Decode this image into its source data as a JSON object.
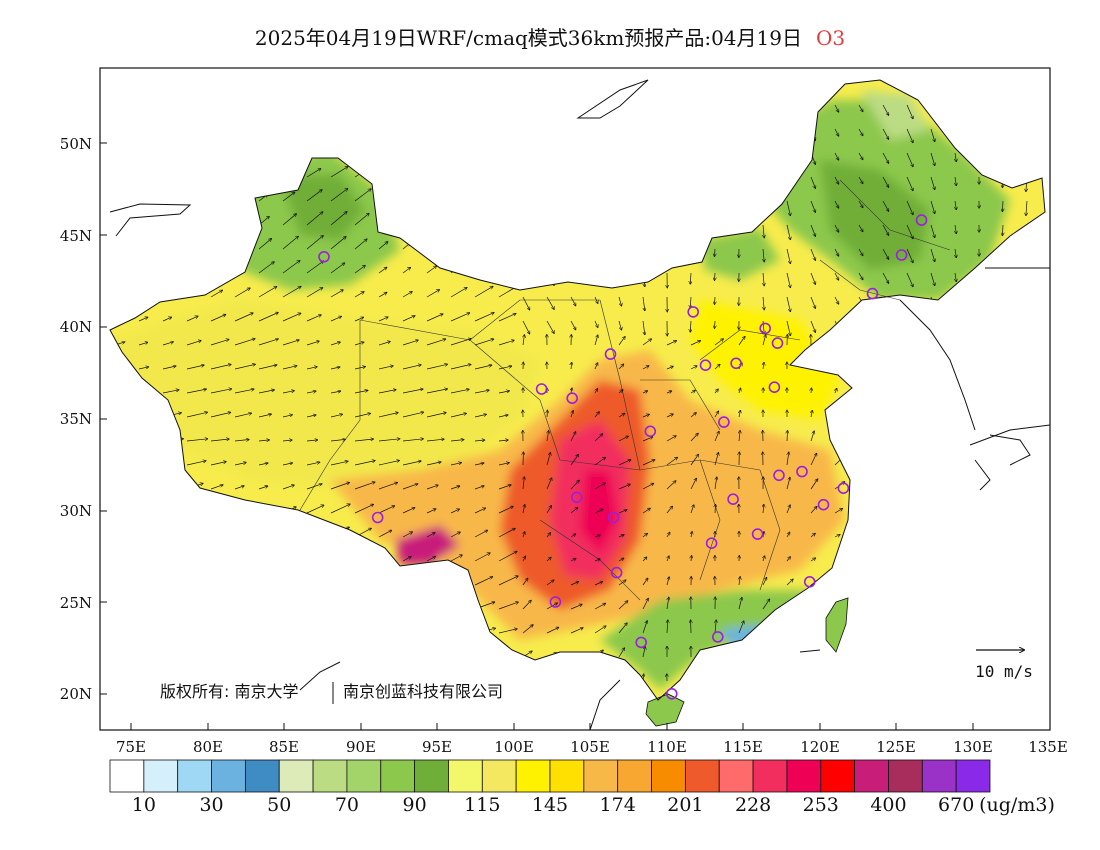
{
  "title": {
    "text": "2025年04月19日WRF/cmaq模式36km预报产品:04月19日",
    "variable": "O3"
  },
  "map": {
    "lat_labels": [
      "50N",
      "45N",
      "40N",
      "35N",
      "30N",
      "25N",
      "20N"
    ],
    "lon_labels": [
      "75E",
      "80E",
      "85E",
      "90E",
      "95E",
      "100E",
      "105E",
      "110E",
      "115E",
      "120E",
      "125E",
      "130E",
      "135E"
    ],
    "copyright": "版权所有: 南京大学",
    "copyright2": "南京创蓝科技有限公司",
    "wind_scale_label": "10 m/s",
    "stations": [
      [
        87.6,
        43.8
      ],
      [
        91.1,
        29.6
      ],
      [
        101.8,
        36.6
      ],
      [
        103.8,
        36.1
      ],
      [
        106.3,
        38.5
      ],
      [
        104.1,
        30.7
      ],
      [
        106.5,
        29.6
      ],
      [
        106.7,
        26.6
      ],
      [
        102.7,
        25.0
      ],
      [
        108.3,
        22.8
      ],
      [
        110.3,
        20.0
      ],
      [
        113.3,
        23.1
      ],
      [
        108.9,
        34.3
      ],
      [
        111.7,
        40.8
      ],
      [
        112.5,
        37.9
      ],
      [
        114.5,
        38.0
      ],
      [
        116.4,
        39.9
      ],
      [
        117.2,
        39.1
      ],
      [
        117.0,
        36.7
      ],
      [
        113.7,
        34.8
      ],
      [
        114.3,
        30.6
      ],
      [
        112.9,
        28.2
      ],
      [
        115.9,
        28.7
      ],
      [
        117.3,
        31.9
      ],
      [
        118.8,
        32.1
      ],
      [
        120.2,
        30.3
      ],
      [
        121.5,
        31.2
      ],
      [
        119.3,
        26.1
      ],
      [
        123.4,
        41.8
      ],
      [
        125.3,
        43.9
      ],
      [
        126.6,
        45.8
      ]
    ]
  },
  "legend": {
    "unit": "(ug/m3)",
    "labels": [
      "10",
      "30",
      "50",
      "70",
      "90",
      "115",
      "145",
      "174",
      "201",
      "228",
      "253",
      "400",
      "670"
    ],
    "colors": [
      "#ffffff",
      "#d6f0fb",
      "#9fd8f4",
      "#6cb2e0",
      "#3f8cc4",
      "#dcebb8",
      "#bcdc84",
      "#a2d46a",
      "#8cc84c",
      "#6fae38",
      "#f2f86a",
      "#f4e860",
      "#fff200",
      "#ffe000",
      "#f8b848",
      "#f8a830",
      "#f88c00",
      "#ee5a2c",
      "#ff6a6a",
      "#f22e5e",
      "#ee0054",
      "#ff0000",
      "#c81e7a",
      "#a82c5c",
      "#9a32c8",
      "#8a2ae8"
    ]
  }
}
